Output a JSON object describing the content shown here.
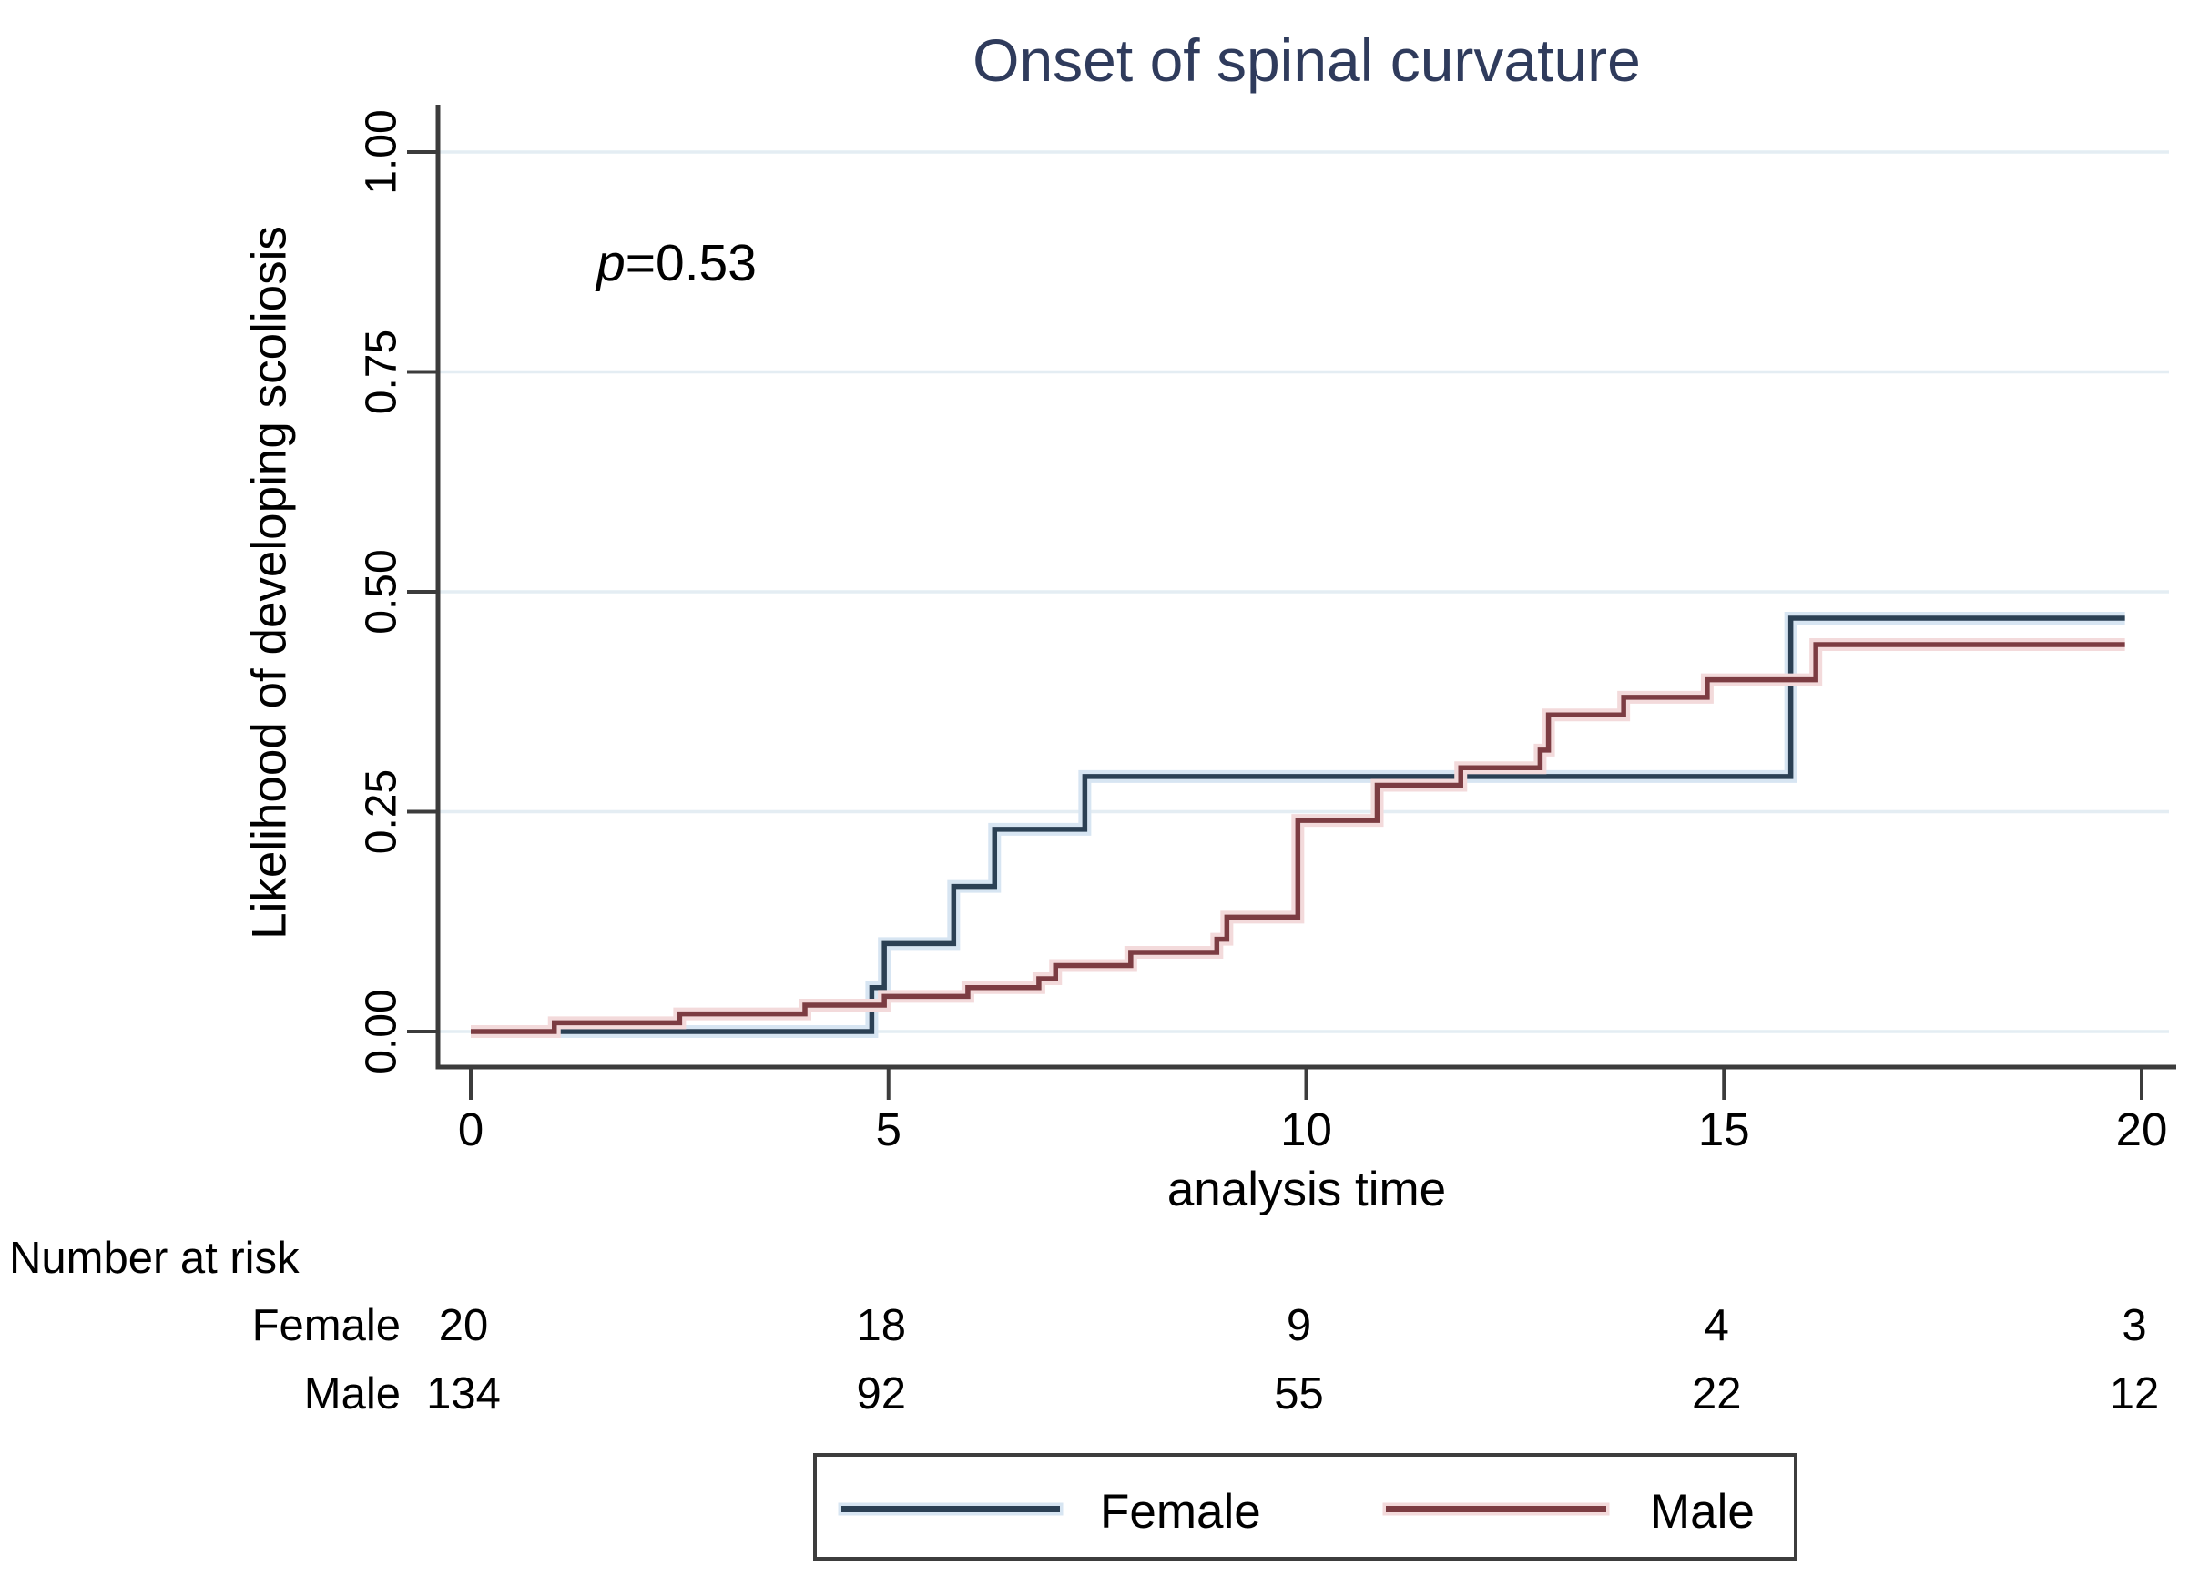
{
  "title": {
    "text": "Onset of spinal curvature",
    "color": "#2f3b5c"
  },
  "annotation": {
    "p_symbol": "p",
    "p_value": "=0.53"
  },
  "chart_data": {
    "type": "line",
    "subtype": "kaplan-meier-failure-step",
    "title": "Onset of spinal curvature",
    "p_value_label": "p=0.53",
    "x_axis": {
      "label": "analysis time",
      "ticks": [
        0,
        5,
        10,
        15,
        20
      ],
      "tick_labels": [
        "0",
        "5",
        "10",
        "15",
        "20"
      ],
      "range": [
        0,
        20
      ]
    },
    "y_axis": {
      "label": "Likelihood of developing scoliosis",
      "tick_values": [
        0,
        0.25,
        0.5,
        0.75,
        1.0
      ],
      "tick_labels": [
        "0.00",
        "0.25",
        "0.50",
        "0.75",
        "1.00"
      ],
      "range": [
        0,
        1
      ],
      "grid": true
    },
    "end_time": 19.8,
    "series": [
      {
        "name": "Female",
        "color": "#2b4054",
        "halo_color": "#d7e5f2",
        "start": [
          0,
          0
        ],
        "steps": [
          [
            4.8,
            0.05
          ],
          [
            4.95,
            0.1
          ],
          [
            5.78,
            0.165
          ],
          [
            6.27,
            0.23
          ],
          [
            7.35,
            0.29
          ],
          [
            15.8,
            0.47
          ]
        ]
      },
      {
        "name": "Male",
        "color": "#7c3c42",
        "halo_color": "#f3dadb",
        "start": [
          0,
          0
        ],
        "steps": [
          [
            1.0,
            0.01
          ],
          [
            2.5,
            0.02
          ],
          [
            4.0,
            0.03
          ],
          [
            4.95,
            0.04
          ],
          [
            5.95,
            0.05
          ],
          [
            6.8,
            0.06
          ],
          [
            7.0,
            0.075
          ],
          [
            7.9,
            0.09
          ],
          [
            8.93,
            0.105
          ],
          [
            9.05,
            0.13
          ],
          [
            9.9,
            0.24
          ],
          [
            10.85,
            0.28
          ],
          [
            11.85,
            0.3
          ],
          [
            12.8,
            0.32
          ],
          [
            12.9,
            0.36
          ],
          [
            13.8,
            0.38
          ],
          [
            14.8,
            0.4
          ],
          [
            16.1,
            0.44
          ]
        ]
      }
    ],
    "colors": {
      "grid": "#e4edf3",
      "axis": "#3c3c3c",
      "tick_text": "#000000"
    },
    "legend_position": "bottom-center-boxed"
  },
  "risk_table": {
    "heading": "Number at risk",
    "times": [
      0,
      5,
      10,
      15,
      20
    ],
    "rows": [
      {
        "label": "Female",
        "values": [
          "20",
          "18",
          "9",
          "4",
          "3"
        ]
      },
      {
        "label": "Male",
        "values": [
          "134",
          "92",
          "55",
          "22",
          "12"
        ]
      }
    ]
  },
  "legend": {
    "items": [
      {
        "label": "Female",
        "color": "#2b4054",
        "halo_color": "#d7e5f2"
      },
      {
        "label": "Male",
        "color": "#7c3c42",
        "halo_color": "#f3dadb"
      }
    ]
  }
}
